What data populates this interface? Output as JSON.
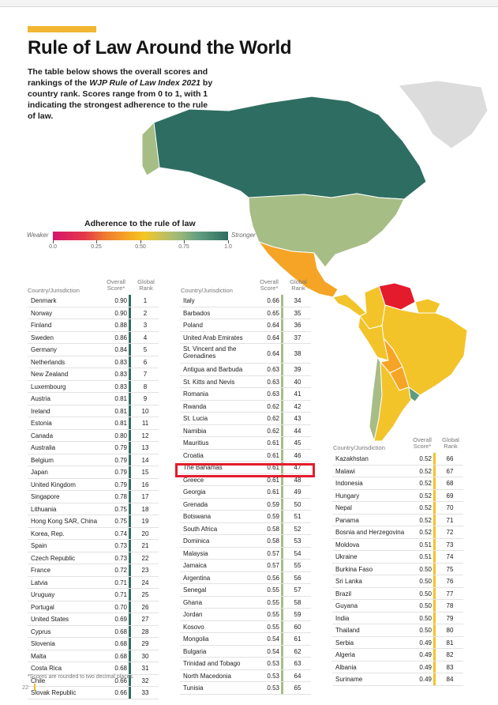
{
  "title": "Rule of Law Around the World",
  "intro": {
    "part1": "The table below shows the overall scores and rankings of the ",
    "italic": "WJP Rule of Law Index 2021",
    "part2": " by country rank. Scores range from 0 to 1, with 1 indicating the strongest adherence to the rule of law."
  },
  "legend": {
    "title": "Adherence to the rule of law",
    "weaker": "Weaker",
    "stronger": "Stronger",
    "ticks": [
      "0.0",
      "0.25",
      "0.50",
      "0.75",
      "1.0"
    ]
  },
  "headers": {
    "country": "Country/Jurisdiction",
    "score": "Overall Score*",
    "rank": "Global Rank"
  },
  "colors": {
    "strong": "#2e6e62",
    "green": "#a7bd86",
    "yellow": "#f2c42a",
    "highlight": "#e41b2d",
    "accent": "#f2b632"
  },
  "table1": [
    {
      "country": "Denmark",
      "score": "0.90",
      "rank": "1"
    },
    {
      "country": "Norway",
      "score": "0.90",
      "rank": "2"
    },
    {
      "country": "Finland",
      "score": "0.88",
      "rank": "3"
    },
    {
      "country": "Sweden",
      "score": "0.86",
      "rank": "4"
    },
    {
      "country": "Germany",
      "score": "0.84",
      "rank": "5"
    },
    {
      "country": "Netherlands",
      "score": "0.83",
      "rank": "6"
    },
    {
      "country": "New Zealand",
      "score": "0.83",
      "rank": "7"
    },
    {
      "country": "Luxembourg",
      "score": "0.83",
      "rank": "8"
    },
    {
      "country": "Austria",
      "score": "0.81",
      "rank": "9"
    },
    {
      "country": "Ireland",
      "score": "0.81",
      "rank": "10"
    },
    {
      "country": "Estonia",
      "score": "0.81",
      "rank": "11"
    },
    {
      "country": "Canada",
      "score": "0.80",
      "rank": "12"
    },
    {
      "country": "Australia",
      "score": "0.79",
      "rank": "13"
    },
    {
      "country": "Belgium",
      "score": "0.79",
      "rank": "14"
    },
    {
      "country": "Japan",
      "score": "0.79",
      "rank": "15"
    },
    {
      "country": "United Kingdom",
      "score": "0.79",
      "rank": "16"
    },
    {
      "country": "Singapore",
      "score": "0.78",
      "rank": "17"
    },
    {
      "country": "Lithuania",
      "score": "0.75",
      "rank": "18"
    },
    {
      "country": "Hong Kong SAR, China",
      "score": "0.75",
      "rank": "19"
    },
    {
      "country": "Korea, Rep.",
      "score": "0.74",
      "rank": "20"
    },
    {
      "country": "Spain",
      "score": "0.73",
      "rank": "21"
    },
    {
      "country": "Czech Republic",
      "score": "0.73",
      "rank": "22"
    },
    {
      "country": "France",
      "score": "0.72",
      "rank": "23"
    },
    {
      "country": "Latvia",
      "score": "0.71",
      "rank": "24"
    },
    {
      "country": "Uruguay",
      "score": "0.71",
      "rank": "25"
    },
    {
      "country": "Portugal",
      "score": "0.70",
      "rank": "26"
    },
    {
      "country": "United States",
      "score": "0.69",
      "rank": "27"
    },
    {
      "country": "Cyprus",
      "score": "0.68",
      "rank": "28"
    },
    {
      "country": "Slovenia",
      "score": "0.68",
      "rank": "29"
    },
    {
      "country": "Malta",
      "score": "0.68",
      "rank": "30"
    },
    {
      "country": "Costa Rica",
      "score": "0.68",
      "rank": "31"
    },
    {
      "country": "Chile",
      "score": "0.66",
      "rank": "32"
    },
    {
      "country": "Slovak Republic",
      "score": "0.66",
      "rank": "33"
    }
  ],
  "table2": [
    {
      "country": "Italy",
      "score": "0.66",
      "rank": "34"
    },
    {
      "country": "Barbados",
      "score": "0.65",
      "rank": "35"
    },
    {
      "country": "Poland",
      "score": "0.64",
      "rank": "36"
    },
    {
      "country": "United Arab Emirates",
      "score": "0.64",
      "rank": "37"
    },
    {
      "country": "St. Vincent and the Grenadines",
      "score": "0.64",
      "rank": "38"
    },
    {
      "country": "Antigua and Barbuda",
      "score": "0.63",
      "rank": "39"
    },
    {
      "country": "St. Kitts and Nevis",
      "score": "0.63",
      "rank": "40"
    },
    {
      "country": "Romania",
      "score": "0.63",
      "rank": "41"
    },
    {
      "country": "Rwanda",
      "score": "0.62",
      "rank": "42"
    },
    {
      "country": "St. Lucia",
      "score": "0.62",
      "rank": "43"
    },
    {
      "country": "Namibia",
      "score": "0.62",
      "rank": "44"
    },
    {
      "country": "Mauritius",
      "score": "0.61",
      "rank": "45"
    },
    {
      "country": "Croatia",
      "score": "0.61",
      "rank": "46"
    },
    {
      "country": "The Bahamas",
      "score": "0.61",
      "rank": "47"
    },
    {
      "country": "Greece",
      "score": "0.61",
      "rank": "48"
    },
    {
      "country": "Georgia",
      "score": "0.61",
      "rank": "49"
    },
    {
      "country": "Grenada",
      "score": "0.59",
      "rank": "50"
    },
    {
      "country": "Botswana",
      "score": "0.59",
      "rank": "51"
    },
    {
      "country": "South Africa",
      "score": "0.58",
      "rank": "52"
    },
    {
      "country": "Dominica",
      "score": "0.58",
      "rank": "53"
    },
    {
      "country": "Malaysia",
      "score": "0.57",
      "rank": "54"
    },
    {
      "country": "Jamaica",
      "score": "0.57",
      "rank": "55"
    },
    {
      "country": "Argentina",
      "score": "0.56",
      "rank": "56"
    },
    {
      "country": "Senegal",
      "score": "0.55",
      "rank": "57"
    },
    {
      "country": "Ghana",
      "score": "0.55",
      "rank": "58"
    },
    {
      "country": "Jordan",
      "score": "0.55",
      "rank": "59"
    },
    {
      "country": "Kosovo",
      "score": "0.55",
      "rank": "60"
    },
    {
      "country": "Mongolia",
      "score": "0.54",
      "rank": "61"
    },
    {
      "country": "Bulgaria",
      "score": "0.54",
      "rank": "62"
    },
    {
      "country": "Trinidad and Tobago",
      "score": "0.53",
      "rank": "63"
    },
    {
      "country": "North Macedonia",
      "score": "0.53",
      "rank": "64"
    },
    {
      "country": "Tunisia",
      "score": "0.53",
      "rank": "65"
    }
  ],
  "table3": [
    {
      "country": "Kazakhstan",
      "score": "0.52",
      "rank": "66"
    },
    {
      "country": "Malawi",
      "score": "0.52",
      "rank": "67"
    },
    {
      "country": "Indonesia",
      "score": "0.52",
      "rank": "68"
    },
    {
      "country": "Hungary",
      "score": "0.52",
      "rank": "69"
    },
    {
      "country": "Nepal",
      "score": "0.52",
      "rank": "70"
    },
    {
      "country": "Panama",
      "score": "0.52",
      "rank": "71"
    },
    {
      "country": "Bosnia and Herzegovina",
      "score": "0.52",
      "rank": "72"
    },
    {
      "country": "Moldova",
      "score": "0.51",
      "rank": "73"
    },
    {
      "country": "Ukraine",
      "score": "0.51",
      "rank": "74"
    },
    {
      "country": "Burkina Faso",
      "score": "0.50",
      "rank": "75"
    },
    {
      "country": "Sri Lanka",
      "score": "0.50",
      "rank": "76"
    },
    {
      "country": "Brazil",
      "score": "0.50",
      "rank": "77"
    },
    {
      "country": "Guyana",
      "score": "0.50",
      "rank": "78"
    },
    {
      "country": "India",
      "score": "0.50",
      "rank": "79"
    },
    {
      "country": "Thailand",
      "score": "0.50",
      "rank": "80"
    },
    {
      "country": "Serbia",
      "score": "0.49",
      "rank": "81"
    },
    {
      "country": "Algeria",
      "score": "0.49",
      "rank": "82"
    },
    {
      "country": "Albania",
      "score": "0.49",
      "rank": "83"
    },
    {
      "country": "Suriname",
      "score": "0.49",
      "rank": "84"
    }
  ],
  "footnote": "*Scores are rounded to two decimal places.",
  "page_number": "22"
}
